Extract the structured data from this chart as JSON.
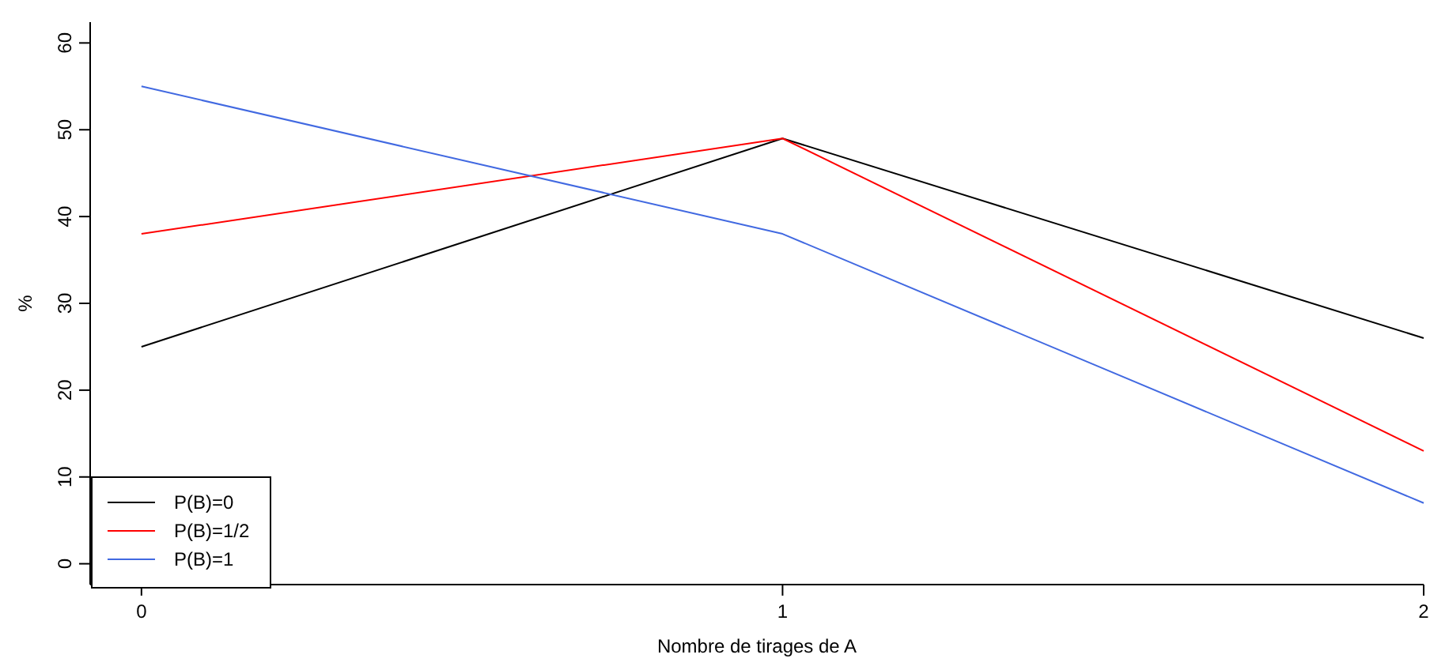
{
  "chart_data": {
    "type": "line",
    "xlabel": "Nombre de tirages de A",
    "ylabel": "%",
    "x": [
      0,
      1,
      2
    ],
    "xlim": [
      -0.08,
      2.0
    ],
    "xticks": [
      0,
      1,
      2
    ],
    "ylim": [
      -2.4,
      62.4
    ],
    "yticks": [
      0,
      10,
      20,
      30,
      40,
      50,
      60
    ],
    "series": [
      {
        "name": "P(B)=0",
        "color": "#000000",
        "values": [
          25,
          49,
          26
        ]
      },
      {
        "name": "P(B)=1/2",
        "color": "#ff0000",
        "values": [
          38,
          49,
          13
        ]
      },
      {
        "name": "P(B)=1",
        "color": "#4169e1",
        "values": [
          55,
          38,
          7
        ]
      }
    ],
    "legend": "bottom left",
    "grid": false,
    "marker": "none",
    "line_style": "solid"
  }
}
